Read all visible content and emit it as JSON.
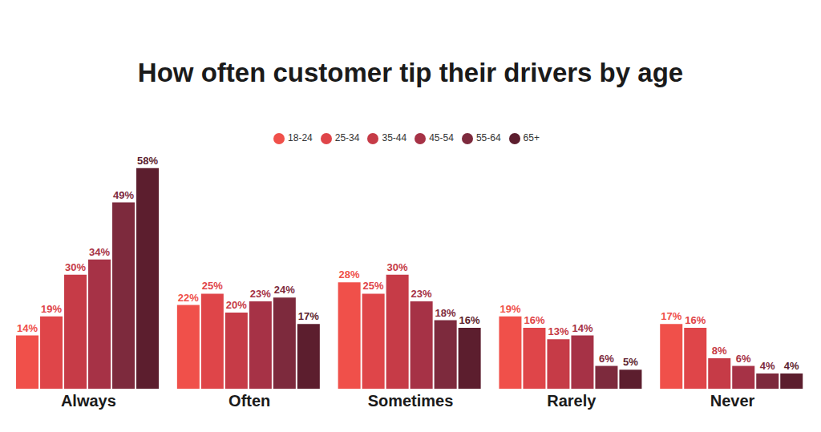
{
  "chart_data": {
    "type": "bar",
    "title": "How often customer tip their drivers by age",
    "categories": [
      "Always",
      "Often",
      "Sometimes",
      "Rarely",
      "Never"
    ],
    "series": [
      {
        "name": "18-24",
        "color": "#f0504a",
        "values": [
          14,
          22,
          28,
          19,
          17
        ],
        "value_labels": [
          "14%",
          "22%",
          "28%",
          "19%",
          "17%"
        ]
      },
      {
        "name": "25-34",
        "color": "#df4549",
        "values": [
          19,
          25,
          25,
          16,
          16
        ],
        "value_labels": [
          "19%",
          "25%",
          "25%",
          "16%",
          "16%"
        ]
      },
      {
        "name": "35-44",
        "color": "#c63b47",
        "values": [
          30,
          20,
          30,
          13,
          8
        ],
        "value_labels": [
          "30%",
          "20%",
          "30%",
          "13%",
          "8%"
        ]
      },
      {
        "name": "45-54",
        "color": "#a63246",
        "values": [
          34,
          23,
          23,
          14,
          6
        ],
        "value_labels": [
          "34%",
          "23%",
          "23%",
          "14%",
          "6%"
        ]
      },
      {
        "name": "55-64",
        "color": "#7d2a3d",
        "values": [
          49,
          24,
          18,
          6,
          4
        ],
        "value_labels": [
          "49%",
          "24%",
          "18%",
          "6%",
          "4%"
        ]
      },
      {
        "name": "65+",
        "color": "#5c1e2e",
        "values": [
          58,
          17,
          16,
          5,
          4
        ],
        "value_labels": [
          "58%",
          "17%",
          "16%",
          "5%",
          "4%"
        ]
      }
    ],
    "data_labels": true,
    "legend": "top",
    "tick_labels": "x",
    "grid": false
  }
}
